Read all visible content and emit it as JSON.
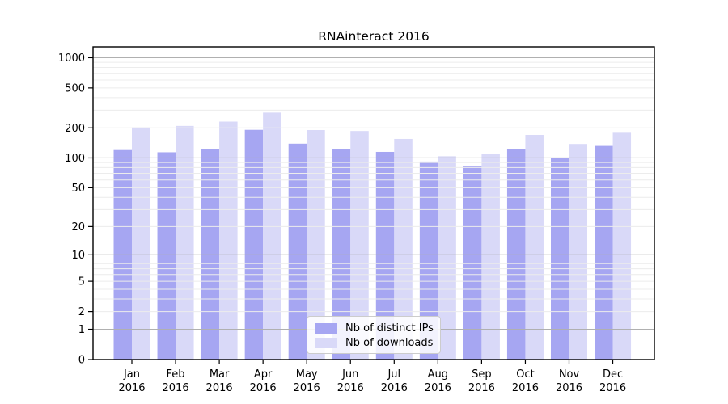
{
  "title": "RNAinteract 2016",
  "chart_data": {
    "type": "bar",
    "title": "RNAinteract 2016",
    "xlabel": "",
    "ylabel": "",
    "categories": [
      "Jan",
      "Feb",
      "Mar",
      "Apr",
      "May",
      "Jun",
      "Jul",
      "Aug",
      "Sep",
      "Oct",
      "Nov",
      "Dec"
    ],
    "category_year": "2016",
    "series": [
      {
        "name": "Nb of distinct IPs",
        "color": "#a6a6f2",
        "values": [
          120,
          114,
          122,
          191,
          139,
          123,
          115,
          92,
          82,
          122,
          100,
          132
        ]
      },
      {
        "name": "Nb of downloads",
        "color": "#d9d9f8",
        "values": [
          202,
          209,
          231,
          284,
          190,
          186,
          155,
          104,
          110,
          170,
          138,
          182
        ]
      }
    ],
    "yscale": "log-like: y = log10(1 + v)",
    "y_ticks": [
      1000,
      500,
      200,
      100,
      50,
      20,
      10,
      5,
      2,
      1,
      0
    ],
    "ylim": [
      0,
      1300
    ],
    "grid": "minor gridlines at 2-9 per decade (light), major at 1/10/100/1000 (gray), drawn above bars",
    "legend_position": "inside lower-center"
  },
  "colors": {
    "major_grid": "#b0b0b0",
    "minor_grid": "#ececec",
    "axis_frame": "#000000",
    "text": "#000000"
  }
}
